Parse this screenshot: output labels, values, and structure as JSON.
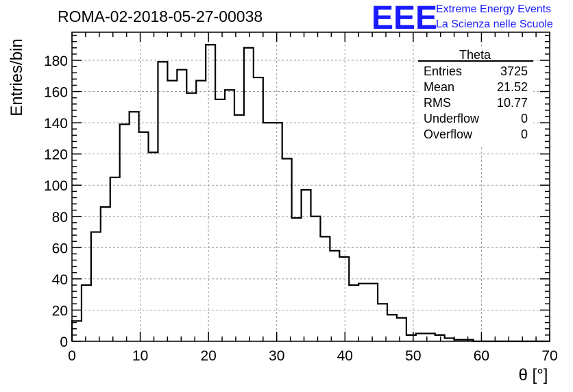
{
  "chart_data": {
    "type": "histogram",
    "title": "ROMA-02-2018-05-27-00038",
    "xlabel": "θ [°]",
    "ylabel": "Entries/bin",
    "xlim": [
      0,
      70
    ],
    "ylim": [
      0,
      198
    ],
    "grid": true,
    "bin_width": 1.4,
    "x_ticks": [
      0,
      10,
      20,
      30,
      40,
      50,
      60,
      70
    ],
    "y_ticks": [
      0,
      20,
      40,
      60,
      80,
      100,
      120,
      140,
      160,
      180
    ],
    "values": [
      13,
      36,
      70,
      86,
      105,
      139,
      147,
      134,
      121,
      179,
      167,
      174,
      159,
      167,
      190,
      155,
      161,
      145,
      188,
      169,
      140,
      140,
      117,
      79,
      97,
      80,
      67,
      58,
      54,
      36,
      37,
      37,
      24,
      17,
      15,
      4,
      5,
      5,
      4,
      2,
      1,
      1,
      0,
      0,
      0,
      0,
      0,
      0,
      0,
      0
    ],
    "stats": {
      "name": "Theta",
      "rows": [
        {
          "label": "Entries",
          "value": "3725"
        },
        {
          "label": "Mean",
          "value": "21.52"
        },
        {
          "label": "RMS",
          "value": "10.77"
        },
        {
          "label": "Underflow",
          "value": "0"
        },
        {
          "label": "Overflow",
          "value": "0"
        }
      ]
    }
  },
  "logo": {
    "mark": "EEE",
    "line1": "Extreme Energy Events",
    "line2": "La Scienza nelle Scuole",
    "color": "#1a1aff"
  }
}
